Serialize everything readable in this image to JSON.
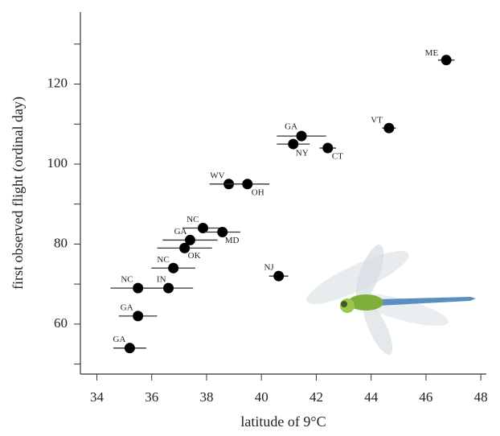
{
  "chart_data": {
    "type": "scatter",
    "xlabel": "latitude of 9°C",
    "ylabel": "first observed flight (ordinal day)",
    "xlim": [
      33.4,
      48.2
    ],
    "ylim": [
      47.5,
      138
    ],
    "xticks": [
      34,
      36,
      38,
      40,
      42,
      44,
      46,
      48
    ],
    "yticks": [
      60,
      80,
      100,
      120
    ],
    "yminorticks": [
      50,
      70,
      90,
      110,
      130
    ],
    "series": [
      {
        "color": "#000000",
        "labels": [
          "ME",
          "VT",
          "GA",
          "NY",
          "CT",
          "WV",
          "OH",
          "NC",
          "MD",
          "GA",
          "OK",
          "NC",
          "NJ",
          "NC",
          "IN",
          "GA",
          "GA"
        ],
        "x": [
          46.74,
          44.65,
          41.46,
          41.16,
          42.42,
          38.81,
          39.49,
          37.87,
          38.58,
          37.4,
          37.2,
          36.79,
          40.63,
          35.5,
          36.61,
          35.5,
          35.2
        ],
        "y": [
          126,
          109,
          107,
          105,
          104,
          95,
          95,
          84,
          83,
          81,
          79,
          74,
          72,
          69,
          69,
          62,
          54
        ],
        "xerr": [
          0.3,
          0.25,
          0.9,
          0.6,
          0.3,
          0.7,
          0.8,
          0.75,
          0.65,
          1.0,
          1.0,
          0.8,
          0.35,
          1.0,
          0.9,
          0.7,
          0.6
        ]
      }
    ]
  }
}
